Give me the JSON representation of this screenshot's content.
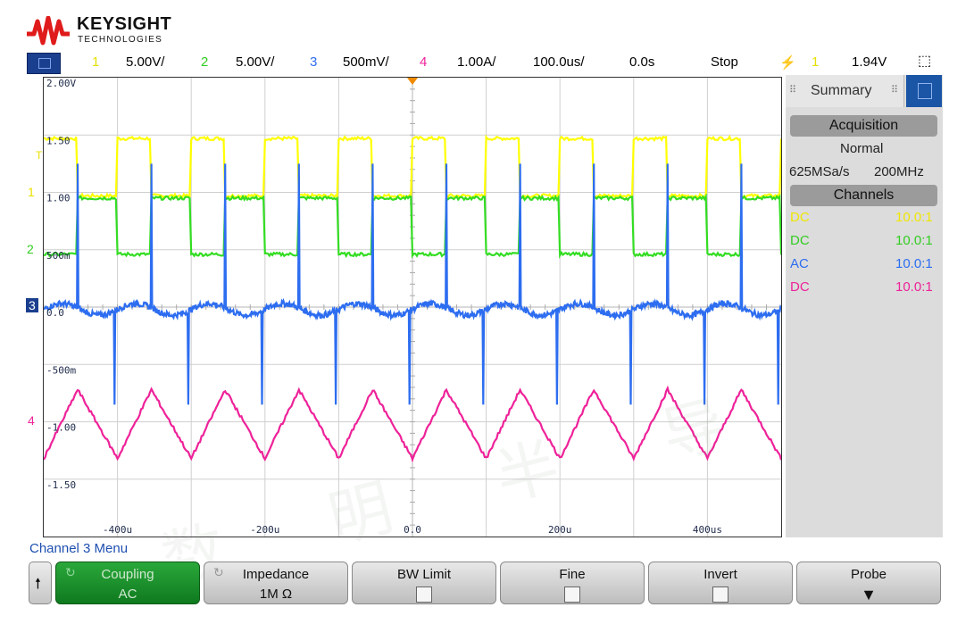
{
  "brand": {
    "name": "KEYSIGHT",
    "sub": "TECHNOLOGIES"
  },
  "status_bar": {
    "ch1": {
      "num": "1",
      "scale": "5.00V/",
      "color": "#ffff00"
    },
    "ch2": {
      "num": "2",
      "scale": "5.00V/",
      "color": "#33dd22"
    },
    "ch3": {
      "num": "3",
      "scale": "500mV/",
      "color": "#2d6df0"
    },
    "ch4": {
      "num": "4",
      "scale": "1.00A/",
      "color": "#ee2299"
    },
    "timebase": "100.0us/",
    "delay": "0.0s",
    "run_state": "Stop",
    "trigger_channel": "1",
    "trigger_level": "1.94V"
  },
  "scope": {
    "y_ticks": [
      "2.00V",
      "1.50",
      "1.00",
      "500m",
      "0.0",
      "-500m",
      "-1.00",
      "-1.50"
    ],
    "x_ticks": [
      "-400u",
      "-200u",
      "0.0",
      "200u",
      "400us"
    ],
    "channel_markers": [
      "T",
      "1",
      "2",
      "3",
      "4"
    ],
    "watermark": "数 明 半 导 体"
  },
  "chart_data": {
    "type": "line",
    "x_unit": "us",
    "xlim": [
      -500,
      500
    ],
    "ylim": [
      -2.0,
      2.0
    ],
    "y_ticks": [
      2.0,
      1.5,
      1.0,
      0.5,
      0.0,
      -0.5,
      -1.0,
      -1.5
    ],
    "x_ticks": [
      -400,
      -200,
      0,
      200,
      400
    ],
    "grid": true,
    "period_us": 100,
    "series": [
      {
        "name": "1",
        "kind": "square",
        "high": 1.47,
        "low": 0.97,
        "duty_high": 0.5,
        "color": "#ffff00"
      },
      {
        "name": "2",
        "kind": "square",
        "high": 0.95,
        "low": 0.46,
        "duty_high": 0.5,
        "color": "#33dd22"
      },
      {
        "name": "3",
        "kind": "spiky-ripple",
        "baseline": -0.02,
        "spike_top": 1.25,
        "spike_bottom": -0.85,
        "color": "#2d6df0"
      },
      {
        "name": "4",
        "kind": "triangle",
        "max": -0.72,
        "min": -1.32,
        "color": "#ee2299"
      }
    ]
  },
  "panel": {
    "tab": "Summary",
    "acquisition_title": "Acquisition",
    "mode": "Normal",
    "sample_rate": "625MSa/s",
    "bandwidth": "200MHz",
    "channels_title": "Channels",
    "channels": [
      {
        "coupling": "DC",
        "probe": "10.0:1",
        "color": "#ffff00"
      },
      {
        "coupling": "DC",
        "probe": "10.0:1",
        "color": "#33dd22"
      },
      {
        "coupling": "AC",
        "probe": "10.0:1",
        "color": "#2d6df0"
      },
      {
        "coupling": "DC",
        "probe": "10.0:1",
        "color": "#ee2299"
      }
    ]
  },
  "menu": {
    "title": "Channel 3 Menu",
    "softkeys": [
      {
        "label": "Coupling",
        "value": "AC"
      },
      {
        "label": "Impedance",
        "value": "1M Ω"
      },
      {
        "label": "BW Limit",
        "value": ""
      },
      {
        "label": "Fine",
        "value": ""
      },
      {
        "label": "Invert",
        "value": ""
      },
      {
        "label": "Probe",
        "value": ""
      }
    ]
  }
}
